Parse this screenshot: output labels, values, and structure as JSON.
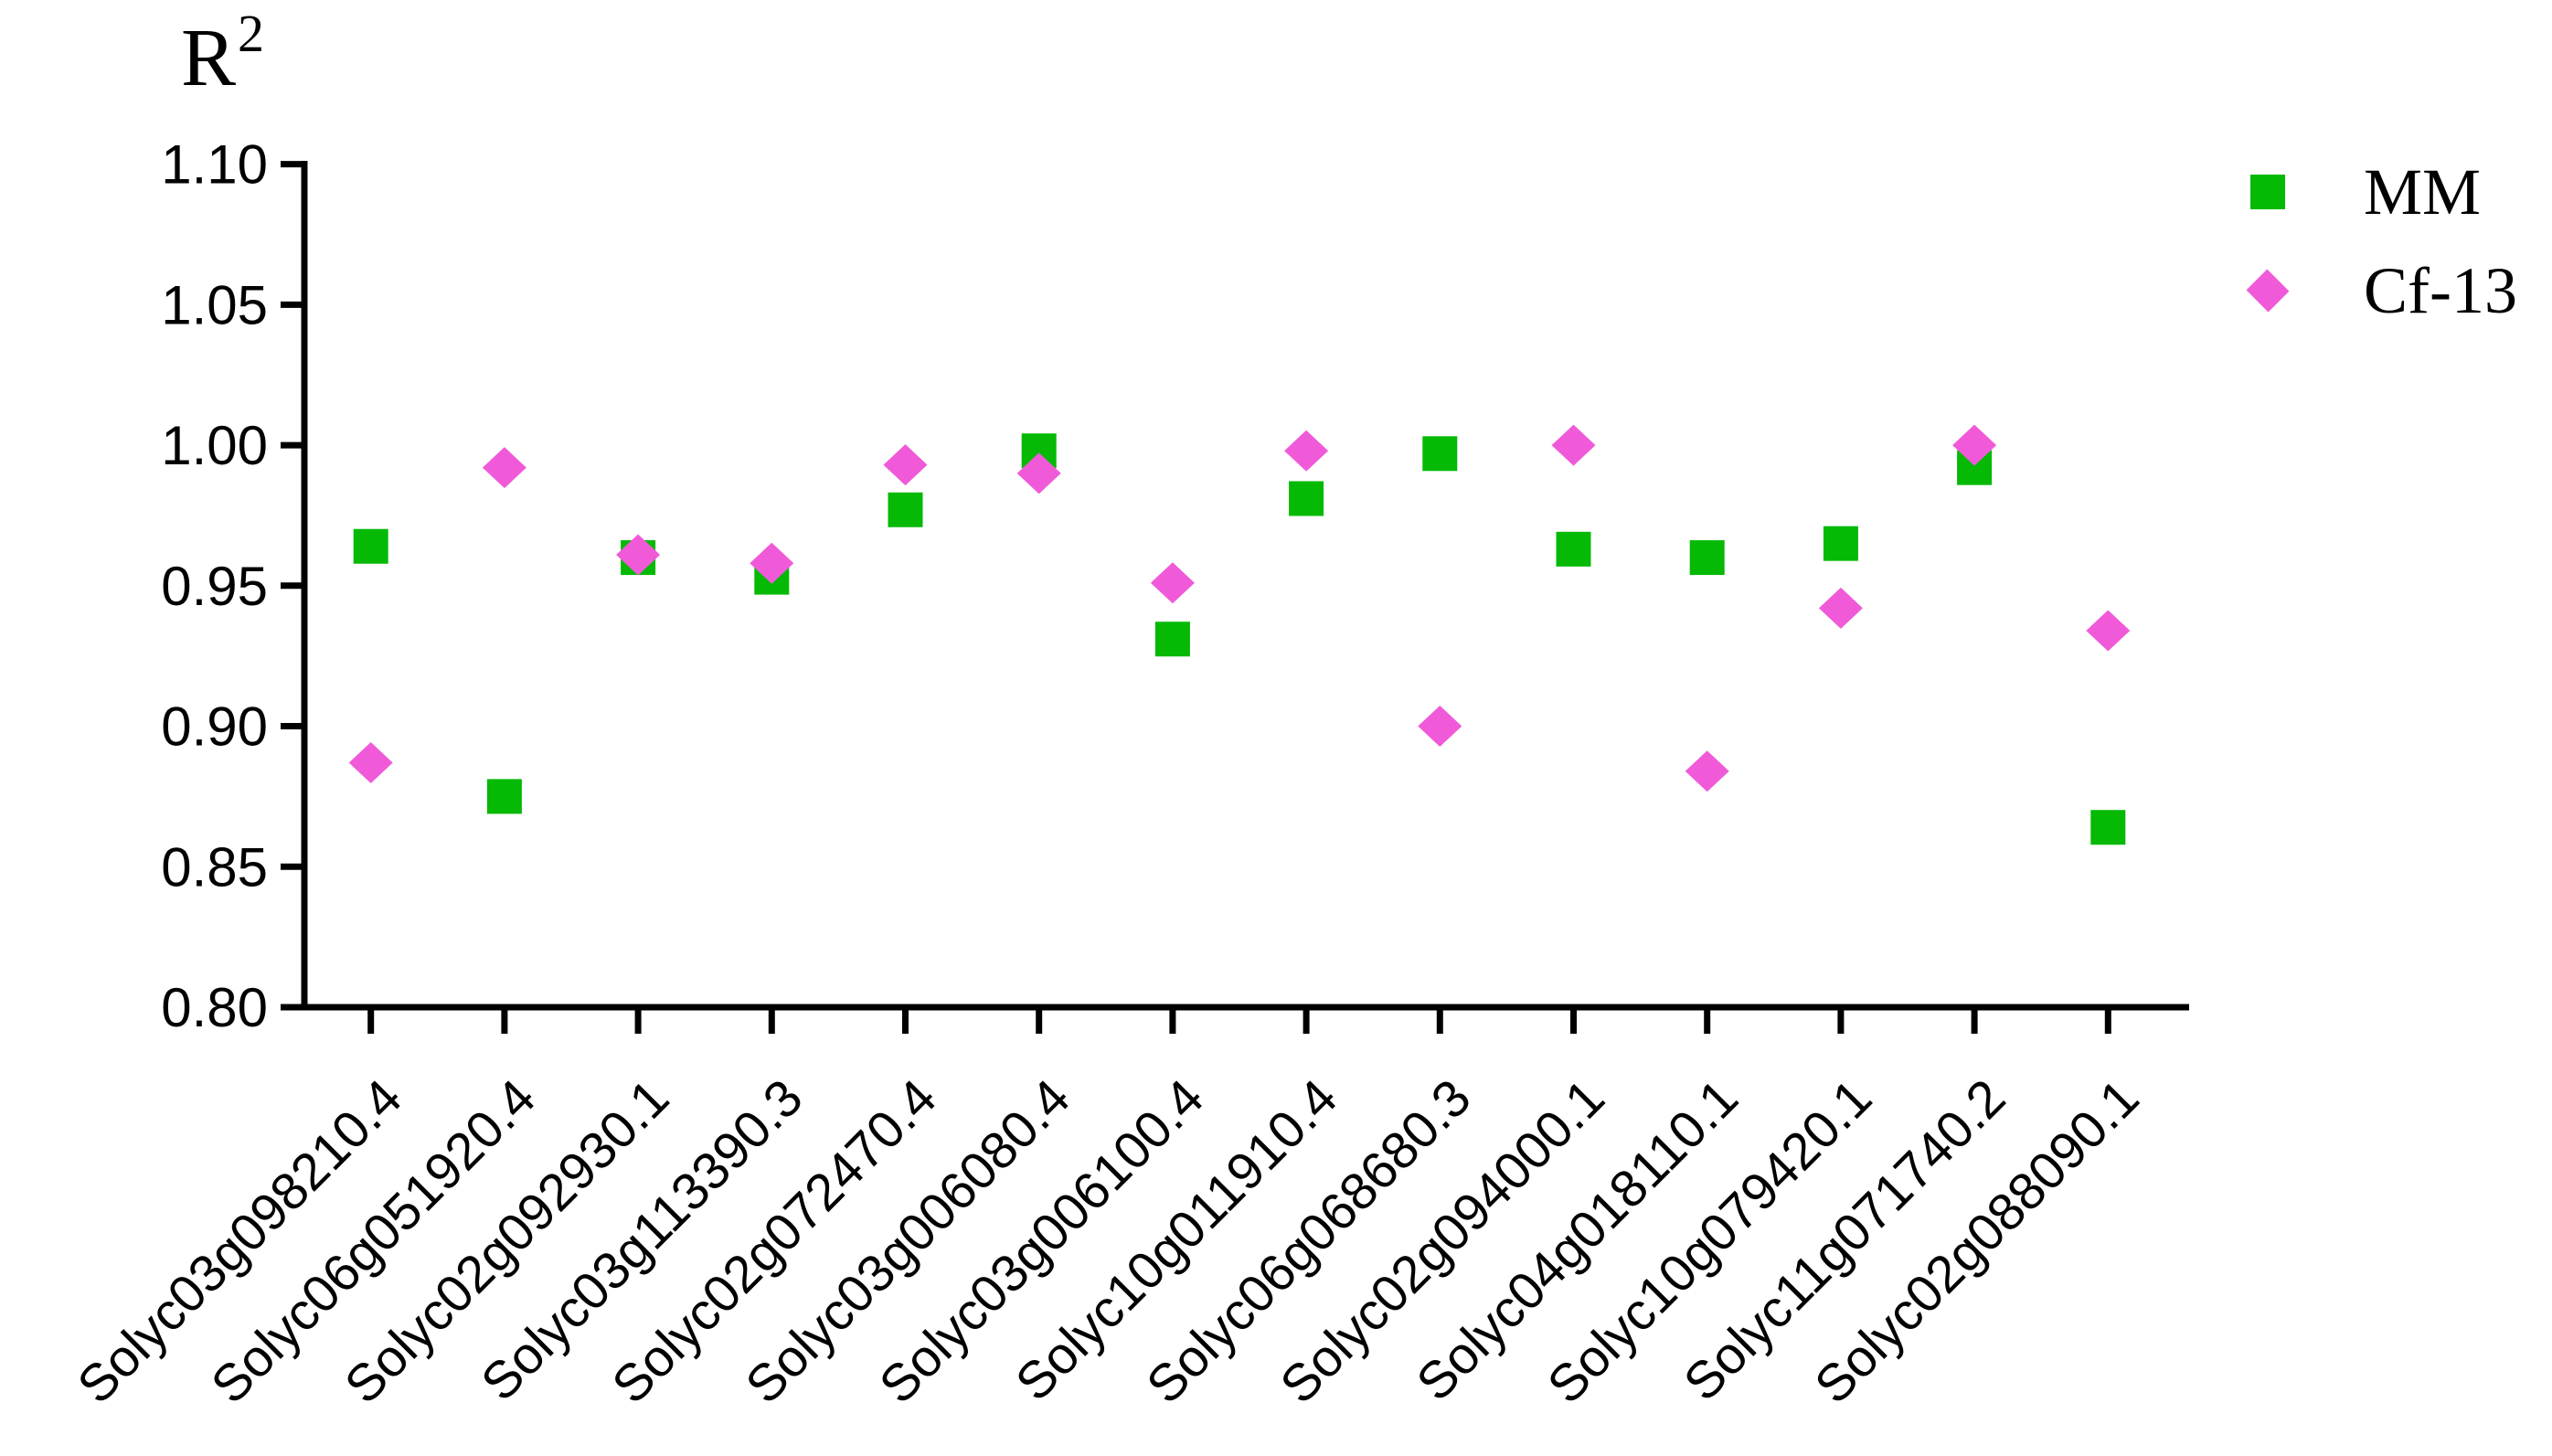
{
  "title": {
    "base": "R",
    "superscript": "2"
  },
  "legend": {
    "items": [
      {
        "label": "MM",
        "marker": "square",
        "color": "#05b905"
      },
      {
        "label": "Cf-13",
        "marker": "diamond",
        "color": "#f05ad8"
      }
    ]
  },
  "chart_data": {
    "type": "scatter",
    "ylabel": "R2",
    "ylim": [
      0.8,
      1.1
    ],
    "y_ticks": [
      "1.10",
      "1.05",
      "1.00",
      "0.95",
      "0.90",
      "0.85",
      "0.80"
    ],
    "grid": false,
    "legend_position": "top-right",
    "x_label_rotation_deg": -45,
    "categories": [
      "Solyc03g098210.4",
      "Solyc06g051920.4",
      "Solyc02g092930.1",
      "Solyc03g113390.3",
      "Solyc02g072470.4",
      "Solyc03g006080.4",
      "Solyc03g006100.4",
      "Solyc10g011910.4",
      "Solyc06g068680.3",
      "Solyc02g094000.1",
      "Solyc04g018110.1",
      "Solyc10g079420.1",
      "Solyc11g071740.2",
      "Solyc02g088090.1"
    ],
    "series": [
      {
        "name": "MM",
        "marker": "square",
        "color": "#05b905",
        "values": [
          0.964,
          0.875,
          0.96,
          0.953,
          0.977,
          0.998,
          0.931,
          0.981,
          0.997,
          0.963,
          0.96,
          0.965,
          0.992,
          0.864
        ]
      },
      {
        "name": "Cf-13",
        "marker": "diamond",
        "color": "#f05ad8",
        "values": [
          0.887,
          0.992,
          0.961,
          0.958,
          0.993,
          0.99,
          0.951,
          0.998,
          0.9,
          1.0,
          0.884,
          0.942,
          1.0,
          0.934
        ]
      }
    ]
  }
}
